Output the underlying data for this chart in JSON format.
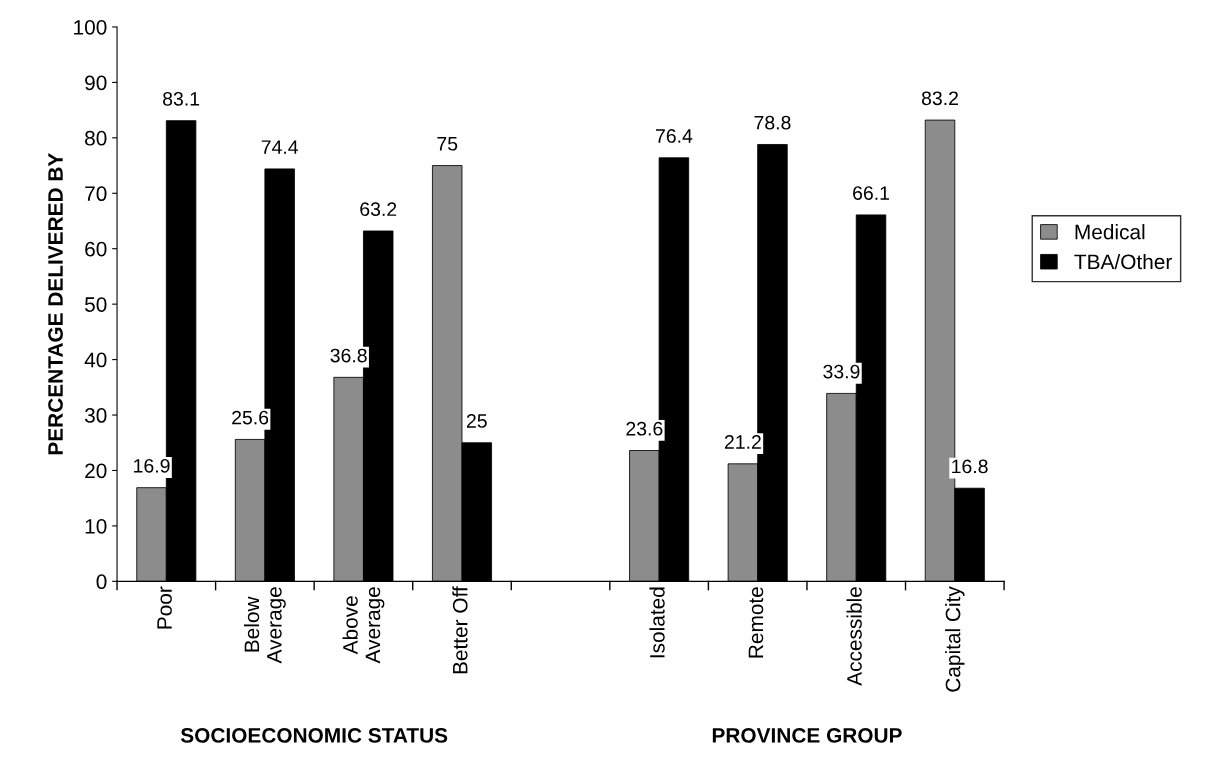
{
  "chart_data": {
    "type": "bar",
    "ylabel": "PERCENTAGE DELIVERED BY",
    "categories": [
      "Poor",
      "Below\nAverage",
      "Above\nAverage",
      "Better Off",
      null,
      "Isolated",
      "Remote",
      "Accessible",
      "Capital City"
    ],
    "series": [
      {
        "name": "Medical",
        "color": "#8c8c8c",
        "values": [
          16.9,
          25.6,
          36.8,
          75,
          null,
          23.6,
          21.2,
          33.9,
          83.2
        ]
      },
      {
        "name": "TBA/Other",
        "color": "#000000",
        "values": [
          83.1,
          74.4,
          63.2,
          25,
          null,
          76.4,
          78.8,
          66.1,
          16.8
        ]
      }
    ],
    "ylim": [
      0,
      100
    ],
    "yticks": [
      0,
      10,
      20,
      30,
      40,
      50,
      60,
      70,
      80,
      90,
      100
    ],
    "data_labels": true,
    "grid": false,
    "legend": "right",
    "annotations": [
      "SOCIOECONOMIC STATUS",
      "PROVINCE GROUP"
    ]
  }
}
